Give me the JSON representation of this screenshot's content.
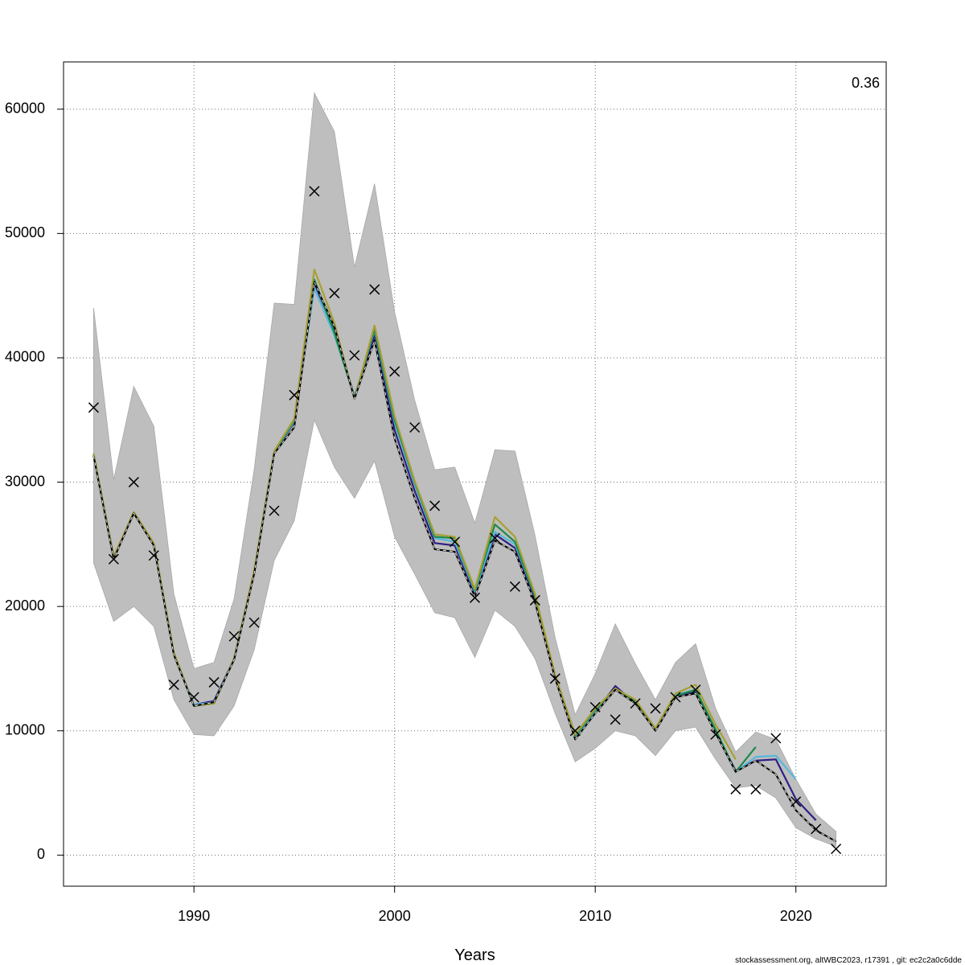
{
  "chart_data": {
    "type": "line",
    "title": "",
    "xlabel": "Years",
    "ylabel": "",
    "xlim": [
      1983.5,
      2024.5
    ],
    "ylim": [
      -2500,
      63800
    ],
    "x_ticks": [
      1990,
      2000,
      2010,
      2020
    ],
    "x_tick_labels": [
      "1990",
      "2000",
      "2010",
      "2020"
    ],
    "y_ticks": [
      0,
      10000,
      20000,
      30000,
      40000,
      50000,
      60000
    ],
    "y_tick_labels": [
      "0",
      "10000",
      "20000",
      "30000",
      "40000",
      "50000",
      "60000"
    ],
    "grid": true,
    "annotation": "0.36",
    "footer": "stockassessment.org, altWBC2023, r17391 , git: ec2c2a0c6dde",
    "band_color": "#bebebe",
    "band": {
      "x": [
        1985,
        1986,
        1987,
        1988,
        1989,
        1990,
        1991,
        1992,
        1993,
        1994,
        1995,
        1996,
        1997,
        1998,
        1999,
        2000,
        2001,
        2002,
        2003,
        2004,
        2005,
        2006,
        2007,
        2008,
        2009,
        2010,
        2011,
        2012,
        2013,
        2014,
        2015,
        2016,
        2017,
        2018,
        2019,
        2020,
        2021,
        2022
      ],
      "upper": [
        44000,
        30200,
        37700,
        34500,
        21000,
        15000,
        15500,
        20600,
        31000,
        44400,
        44300,
        61300,
        58200,
        47300,
        54000,
        43700,
        36600,
        31000,
        31200,
        26700,
        32600,
        32500,
        25700,
        17500,
        11300,
        14600,
        18600,
        15400,
        12500,
        15500,
        17000,
        11800,
        8300,
        9900,
        9300,
        6100,
        3300,
        1900
      ],
      "lower": [
        23500,
        18800,
        20000,
        18400,
        12500,
        9700,
        9600,
        12000,
        16500,
        23700,
        26900,
        35000,
        31200,
        28700,
        31700,
        25600,
        22600,
        19500,
        19100,
        15900,
        19700,
        18400,
        15800,
        11400,
        7500,
        8600,
        10000,
        9600,
        8000,
        10000,
        10300,
        7700,
        5400,
        5600,
        4600,
        2200,
        1300,
        700
      ]
    },
    "observations": {
      "x": [
        1985,
        1986,
        1987,
        1988,
        1989,
        1990,
        1991,
        1992,
        1993,
        1994,
        1995,
        1996,
        1997,
        1998,
        1999,
        2000,
        2001,
        2002,
        2003,
        2004,
        2005,
        2006,
        2007,
        2008,
        2009,
        2010,
        2011,
        2012,
        2013,
        2014,
        2015,
        2016,
        2017,
        2018,
        2019,
        2020,
        2021,
        2022
      ],
      "y": [
        36000,
        23800,
        30000,
        24100,
        13700,
        12700,
        13900,
        17600,
        18700,
        27700,
        37000,
        53400,
        45200,
        40200,
        45500,
        38900,
        34400,
        28100,
        25200,
        20700,
        25500,
        21600,
        20500,
        14200,
        10000,
        11900,
        10900,
        12200,
        11800,
        12700,
        13300,
        9700,
        5300,
        5300,
        9400,
        4300,
        2100,
        500
      ]
    },
    "series": [
      {
        "color": "#000000",
        "dashed_overlay": true,
        "x": [
          1985,
          1986,
          1987,
          1988,
          1989,
          1990,
          1991,
          1992,
          1993,
          1994,
          1995,
          1996,
          1997,
          1998,
          1999,
          2000,
          2001,
          2002,
          2003,
          2004,
          2005,
          2006,
          2007,
          2008,
          2009,
          2010,
          2011,
          2012,
          2013,
          2014,
          2015,
          2016,
          2017,
          2018,
          2019,
          2020,
          2021,
          2022
        ],
        "y": [
          32100,
          23800,
          27500,
          24900,
          16100,
          12000,
          12300,
          15700,
          22600,
          32300,
          34400,
          46100,
          42500,
          36700,
          41400,
          33500,
          28700,
          24600,
          24400,
          20800,
          25300,
          24400,
          20300,
          14200,
          9300,
          11400,
          13300,
          12200,
          10000,
          12700,
          13000,
          9800,
          6700,
          7600,
          6500,
          3600,
          2000,
          1100
        ]
      },
      {
        "color": "#2f1f86",
        "x": [
          1985,
          1986,
          1987,
          1988,
          1989,
          1990,
          1991,
          1992,
          1993,
          1994,
          1995,
          1996,
          1997,
          1998,
          1999,
          2000,
          2001,
          2002,
          2003,
          2004,
          2005,
          2006,
          2007,
          2008,
          2009,
          2010,
          2011,
          2012,
          2013,
          2014,
          2015,
          2016,
          2017,
          2018,
          2019,
          2020,
          2021
        ],
        "y": [
          32200,
          24000,
          27500,
          25000,
          16200,
          12100,
          12400,
          15800,
          22700,
          32400,
          34800,
          46000,
          42200,
          36900,
          41800,
          34200,
          29300,
          25100,
          24900,
          21000,
          25800,
          24700,
          20600,
          14300,
          9400,
          11500,
          13600,
          12200,
          10100,
          12800,
          13100,
          9900,
          6800,
          7600,
          7700,
          4500,
          2800
        ]
      },
      {
        "color": "#55b8d8",
        "x": [
          1985,
          1986,
          1987,
          1988,
          1989,
          1990,
          1991,
          1992,
          1993,
          1994,
          1995,
          1996,
          1997,
          1998,
          1999,
          2000,
          2001,
          2002,
          2003,
          2004,
          2005,
          2006,
          2007,
          2008,
          2009,
          2010,
          2011,
          2012,
          2013,
          2014,
          2015,
          2016,
          2017,
          2018,
          2019,
          2020
        ],
        "y": [
          32200,
          24000,
          27500,
          25000,
          16200,
          12100,
          12300,
          15800,
          22800,
          32400,
          34900,
          45600,
          41800,
          36900,
          42200,
          34800,
          29800,
          25500,
          25200,
          21200,
          26000,
          25000,
          20800,
          14300,
          9500,
          11600,
          13400,
          12300,
          10100,
          12900,
          13300,
          10000,
          6700,
          7900,
          8000,
          6100
        ]
      },
      {
        "color": "#1e8a4a",
        "x": [
          1985,
          1986,
          1987,
          1988,
          1989,
          1990,
          1991,
          1992,
          1993,
          1994,
          1995,
          1996,
          1997,
          1998,
          1999,
          2000,
          2001,
          2002,
          2003,
          2004,
          2005,
          2006,
          2007,
          2008,
          2009,
          2010,
          2011,
          2012,
          2013,
          2014,
          2015,
          2016,
          2017,
          2018
        ],
        "y": [
          32200,
          24000,
          27500,
          25000,
          16200,
          12000,
          12200,
          15800,
          22800,
          32400,
          35000,
          46300,
          42000,
          36800,
          42300,
          35000,
          30000,
          25600,
          25500,
          21300,
          26600,
          25200,
          20800,
          14400,
          9600,
          11700,
          13300,
          12400,
          10100,
          12800,
          13300,
          10100,
          6700,
          8700
        ]
      },
      {
        "color": "#a6a035",
        "x": [
          1985,
          1986,
          1987,
          1988,
          1989,
          1990,
          1991,
          1992,
          1993,
          1994,
          1995,
          1996,
          1997,
          1998,
          1999,
          2000,
          2001,
          2002,
          2003,
          2004,
          2005,
          2006,
          2007,
          2008,
          2009,
          2010,
          2011,
          2012,
          2013,
          2014,
          2015,
          2016,
          2017
        ],
        "y": [
          32300,
          24000,
          27600,
          25100,
          16300,
          12000,
          12200,
          15800,
          22900,
          32500,
          35100,
          47100,
          42800,
          36700,
          42600,
          35300,
          30100,
          25800,
          25600,
          21400,
          27200,
          25600,
          21000,
          14500,
          9700,
          11800,
          13400,
          12500,
          10200,
          13000,
          13700,
          10500,
          7700
        ]
      }
    ]
  }
}
